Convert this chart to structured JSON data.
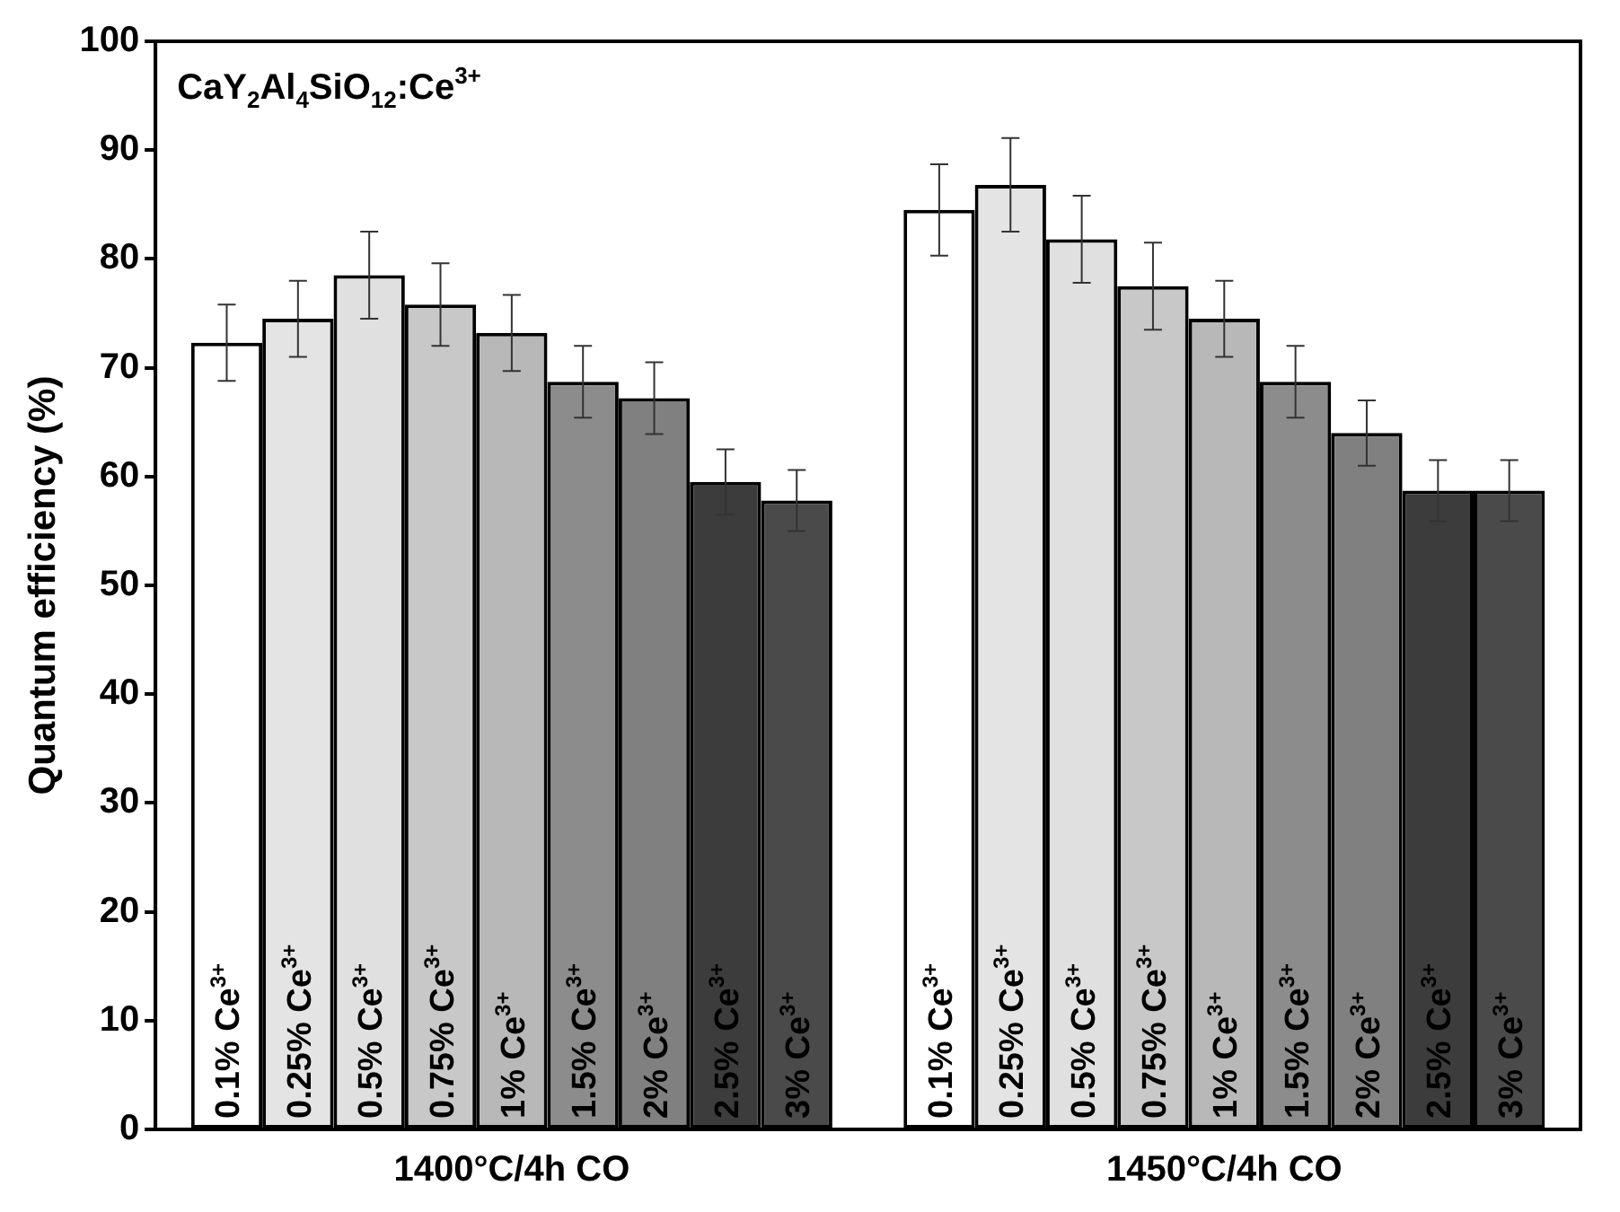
{
  "chart_data": {
    "type": "bar",
    "categories": [
      "1400°C/4h CO",
      "1450°C/4h CO"
    ],
    "ylabel": "Quantum efficiency (%)",
    "ylim": [
      0,
      100
    ],
    "yticks": [
      0,
      10,
      20,
      30,
      40,
      50,
      60,
      70,
      80,
      90,
      100
    ],
    "annotations": [
      "CaY$_{2}$Al$_{4}$SiO$_{12}$:Ce$^{3+}$"
    ],
    "series": [
      {
        "name": "0.1% Ce$^{3+}$",
        "color": "#ffffff",
        "values": [
          72.3,
          84.5
        ],
        "errors": [
          3.5,
          4.2
        ]
      },
      {
        "name": "0.25% Ce$^{3+}$",
        "color": "#e4e4e4",
        "values": [
          74.5,
          86.8
        ],
        "errors": [
          3.5,
          4.3
        ]
      },
      {
        "name": "0.5% Ce$^{3+}$",
        "color": "#e0e0e0",
        "values": [
          78.5,
          81.8
        ],
        "errors": [
          4,
          4
        ]
      },
      {
        "name": "0.75% Ce$^{3+}$",
        "color": "#c8c8c8",
        "values": [
          75.8,
          77.5
        ],
        "errors": [
          3.8,
          4
        ]
      },
      {
        "name": "1% Ce$^{3+}$",
        "color": "#b8b8b8",
        "values": [
          73.2,
          74.5
        ],
        "errors": [
          3.5,
          3.5
        ]
      },
      {
        "name": "1.5% Ce$^{3+}$",
        "color": "#8c8c8c",
        "values": [
          68.7,
          68.7
        ],
        "errors": [
          3.3,
          3.3
        ]
      },
      {
        "name": "2% Ce$^{3+}$",
        "color": "#808080",
        "values": [
          67.2,
          64
        ],
        "errors": [
          3.3,
          3
        ]
      },
      {
        "name": "2.5% Ce$^{3+}$",
        "color": "#3c3c3c",
        "values": [
          59.5,
          58.7
        ],
        "errors": [
          3,
          2.8
        ]
      },
      {
        "name": "3% Ce$^{3+}$",
        "color": "#4a4a4a",
        "values": [
          57.8,
          58.7
        ],
        "errors": [
          2.8,
          2.8
        ]
      }
    ]
  }
}
